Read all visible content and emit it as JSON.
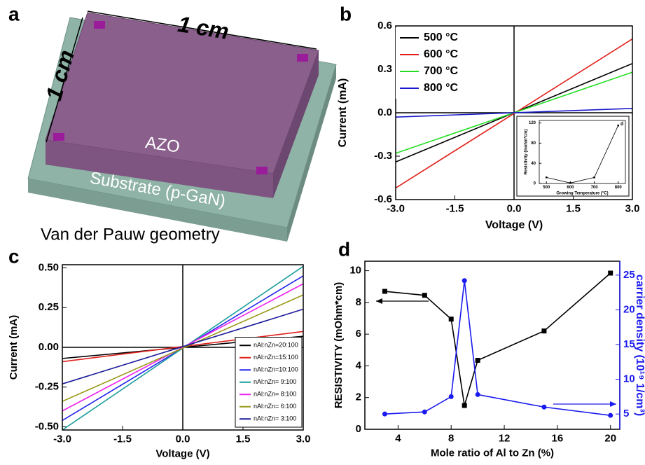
{
  "diagram": {
    "label": "a",
    "width_label": "1 cm",
    "height_label": "1 cm",
    "film": "AZO",
    "substrate": "Substrate (p-GaN)",
    "caption": "Van der Pauw geometry"
  },
  "chart_data": [
    {
      "type": "line",
      "panel_label": "b",
      "x_label": "Voltage (V)",
      "y_label": "Current (mA)",
      "x": [
        -3,
        3
      ],
      "xlim": [
        -3,
        3
      ],
      "xticks": [
        {
          "value": -3,
          "label": "-3.0"
        },
        -1.5,
        {
          "value": 0,
          "label": "0.0"
        },
        1.5,
        {
          "value": 3,
          "label": "3.0"
        }
      ],
      "ylim": [
        -0.6,
        0.6
      ],
      "yticks": [
        -0.6,
        -0.3,
        {
          "value": 0,
          "label": "0.0"
        },
        0.3,
        0.6
      ],
      "zero_lines": true,
      "legend": "upper left",
      "series": [
        {
          "name": "500 °C",
          "color": "#000000",
          "values": [
            -0.34,
            0.34
          ]
        },
        {
          "name": "600 °C",
          "color": "#e0201b",
          "values": [
            -0.52,
            0.51
          ]
        },
        {
          "name": "700 °C",
          "color": "#22dd22",
          "values": [
            -0.28,
            0.28
          ]
        },
        {
          "name": "800 °C",
          "color": "#1a1acc",
          "values": [
            -0.03,
            0.03
          ]
        }
      ]
    },
    {
      "type": "line",
      "panel_label": "d",
      "x_label": "Growing Temperature (°C)",
      "y_label": "Resistivity (mohm*cm)",
      "x": [
        500,
        600,
        700,
        800
      ],
      "xlim": [
        470,
        830
      ],
      "xticks": [
        500,
        600,
        700,
        800
      ],
      "ylim": [
        0,
        125
      ],
      "yticks": [
        0,
        40,
        80,
        120
      ],
      "series": [
        {
          "name": null,
          "color": "#000000",
          "marker": "square",
          "values": [
            12,
            1,
            12,
            115
          ]
        }
      ]
    },
    {
      "type": "line",
      "panel_label": "c",
      "x_label": "Voltage (V)",
      "y_label": "Current (mA)",
      "x": [
        -3,
        3
      ],
      "xlim": [
        -3,
        3
      ],
      "xticks": [
        {
          "value": -3,
          "label": "-3.0"
        },
        -1.5,
        {
          "value": 0,
          "label": "0.0"
        },
        1.5,
        {
          "value": 3,
          "label": "3.0"
        }
      ],
      "ylim": [
        -0.52,
        0.52
      ],
      "yticks": [
        {
          "value": -0.5,
          "label": "-0.50"
        },
        -0.25,
        {
          "value": 0,
          "label": "0.00"
        },
        0.25,
        {
          "value": 0.5,
          "label": "0.50"
        }
      ],
      "zero_lines": true,
      "legend": "lower right",
      "series": [
        {
          "name": "nAl:nZn=20:100",
          "color": "#000000",
          "values": [
            -0.07,
            0.07
          ]
        },
        {
          "name": "nAl:nZn=15:100",
          "color": "#e0201b",
          "values": [
            -0.09,
            0.1
          ]
        },
        {
          "name": "nAl:nZn=10:100",
          "color": "#2222ee",
          "values": [
            -0.46,
            0.45
          ]
        },
        {
          "name": "nAl:nZn= 9:100",
          "color": "#1a9c9c",
          "values": [
            -0.52,
            0.51
          ]
        },
        {
          "name": "nAl:nZn= 8:100",
          "color": "#ee22ee",
          "values": [
            -0.4,
            0.4
          ]
        },
        {
          "name": "nAl:nZn= 6:100",
          "color": "#9a9a1a",
          "values": [
            -0.34,
            0.33
          ]
        },
        {
          "name": "nAl:nZn= 3:100",
          "color": "#1a1a99",
          "values": [
            -0.23,
            0.24
          ]
        }
      ]
    },
    {
      "type": "line",
      "panel_label": "d",
      "x_label": "Mole ratio of Al to Zn (%)",
      "y_label": "RESISTIVITY (mOhm*cm)",
      "y2_label": "carrier density (10¹⁹ 1/cm³)",
      "x": [
        3,
        6,
        8,
        9,
        10,
        15,
        20
      ],
      "xlim": [
        1.5,
        20.7
      ],
      "xticks": [
        4,
        8,
        12,
        16,
        20
      ],
      "ylim": [
        0,
        10.6
      ],
      "yticks": [
        0,
        2,
        4,
        6,
        8,
        10
      ],
      "y2lim": [
        2.8,
        27
      ],
      "y2ticks": [
        5,
        10,
        15,
        20,
        25
      ],
      "series": [
        {
          "name": null,
          "color": "#000000",
          "marker": "square",
          "values": [
            8.7,
            8.45,
            6.95,
            1.5,
            4.35,
            6.2,
            9.85
          ]
        },
        {
          "name": null,
          "color": "#1a1aee",
          "marker": "circle",
          "axis": "y2",
          "values": [
            5.0,
            5.3,
            7.5,
            24.2,
            7.8,
            6.0,
            4.8
          ]
        }
      ]
    }
  ]
}
